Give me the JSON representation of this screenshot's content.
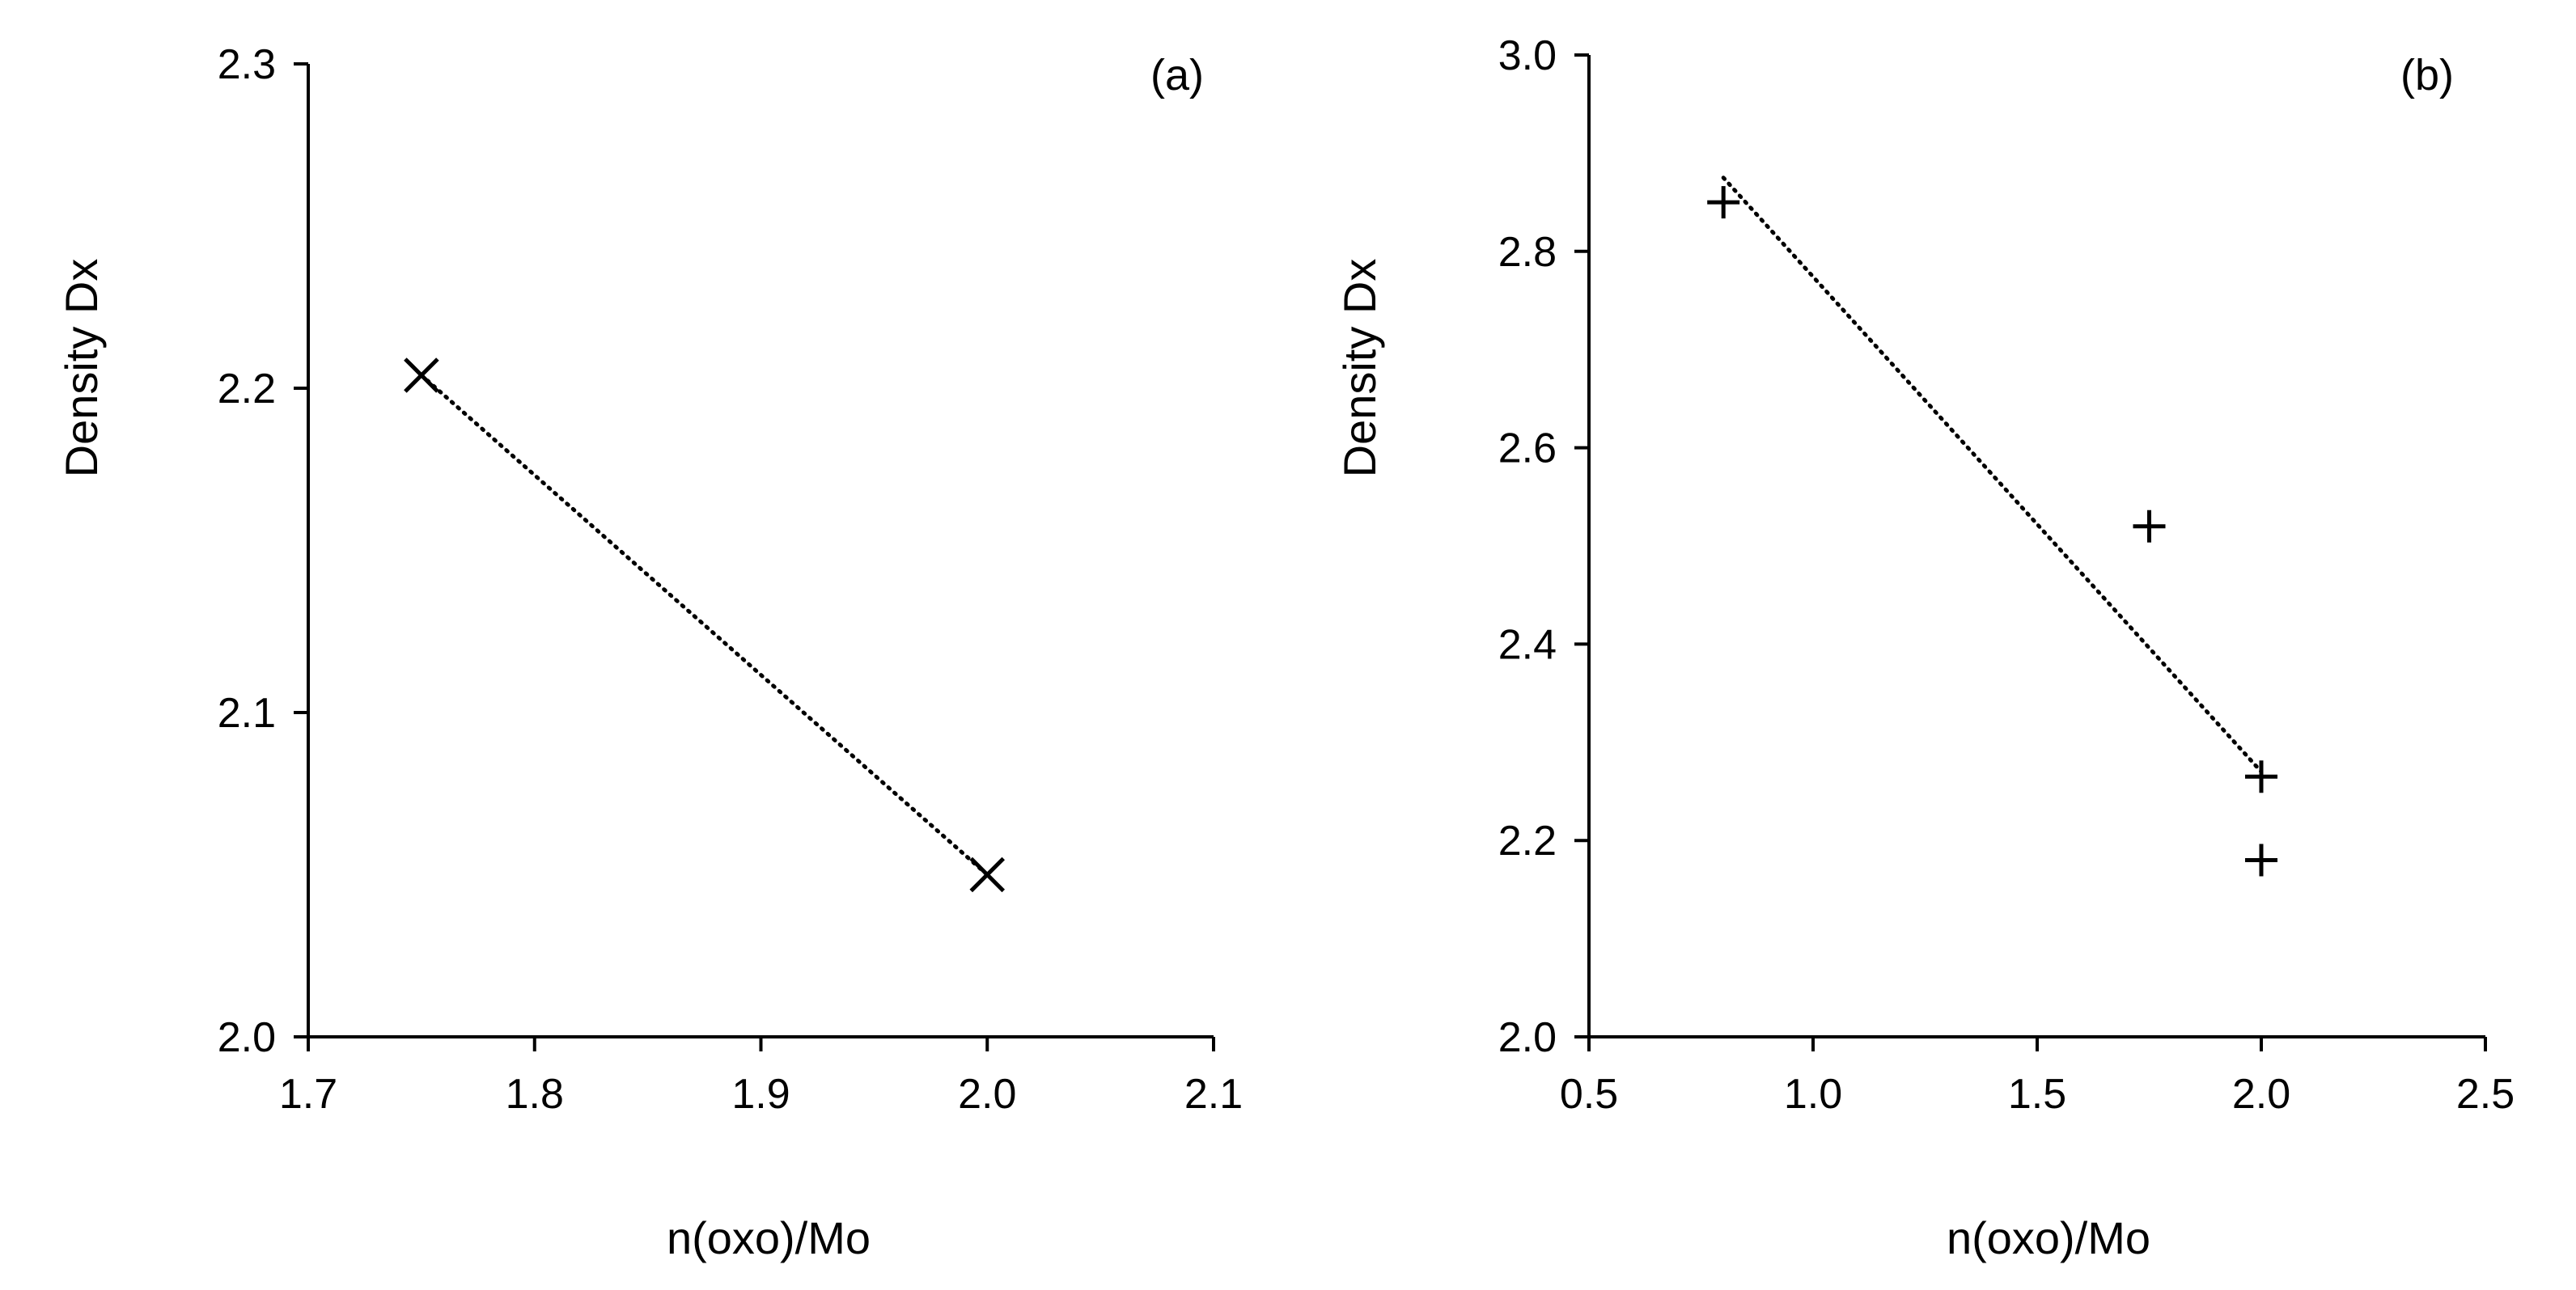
{
  "chart_data": [
    {
      "type": "scatter",
      "panel_label": "(a)",
      "xlabel": "n(oxo)/Mo",
      "ylabel": "Density Dx",
      "xlim": [
        1.7,
        2.1
      ],
      "ylim": [
        2.0,
        2.3
      ],
      "x_ticks": [
        "1.7",
        "1.8",
        "1.9",
        "2.0",
        "2.1"
      ],
      "y_ticks": [
        "2.0",
        "2.1",
        "2.2",
        "2.3"
      ],
      "marker": "x",
      "points": [
        {
          "x": 1.75,
          "y": 2.204
        },
        {
          "x": 2.0,
          "y": 2.05
        }
      ],
      "trendline": {
        "style": "dotted",
        "from": {
          "x": 1.75,
          "y": 2.204
        },
        "to": {
          "x": 2.0,
          "y": 2.05
        }
      }
    },
    {
      "type": "scatter",
      "panel_label": "(b)",
      "xlabel": "n(oxo)/Mo",
      "ylabel": "Density Dx",
      "xlim": [
        0.5,
        2.5
      ],
      "ylim": [
        2.0,
        3.0
      ],
      "x_ticks": [
        "0.5",
        "1.0",
        "1.5",
        "2.0",
        "2.5"
      ],
      "y_ticks": [
        "2.0",
        "2.2",
        "2.4",
        "2.6",
        "2.8",
        "3.0"
      ],
      "marker": "+",
      "points": [
        {
          "x": 0.8,
          "y": 2.85
        },
        {
          "x": 1.75,
          "y": 2.52
        },
        {
          "x": 2.0,
          "y": 2.265
        },
        {
          "x": 2.0,
          "y": 2.18
        }
      ],
      "trendline": {
        "style": "dotted",
        "from": {
          "x": 0.8,
          "y": 2.875
        },
        "to": {
          "x": 2.0,
          "y": 2.27
        }
      }
    }
  ]
}
